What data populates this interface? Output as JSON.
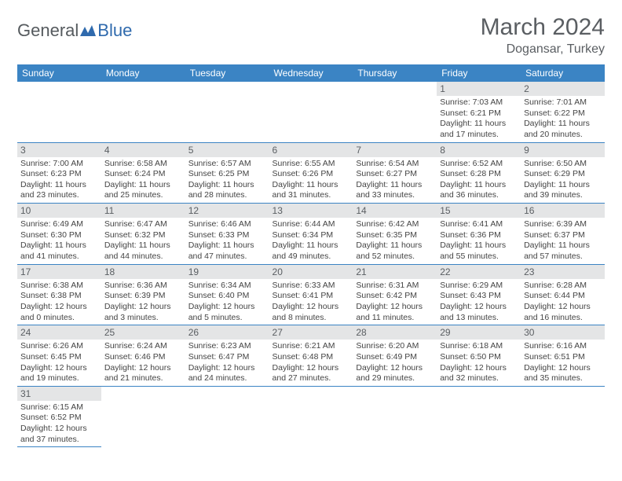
{
  "logo": {
    "part1": "General",
    "part2": "Blue"
  },
  "title": "March 2024",
  "location": "Dogansar, Turkey",
  "colors": {
    "header_bg": "#3b84c4",
    "header_text": "#ffffff",
    "daynum_bg": "#e4e5e6",
    "text": "#5a5e62",
    "accent": "#2f6aad"
  },
  "weekdays": [
    "Sunday",
    "Monday",
    "Tuesday",
    "Wednesday",
    "Thursday",
    "Friday",
    "Saturday"
  ],
  "first_weekday_index": 5,
  "days": [
    {
      "n": 1,
      "sunrise": "7:03 AM",
      "sunset": "6:21 PM",
      "daylight": "11 hours and 17 minutes."
    },
    {
      "n": 2,
      "sunrise": "7:01 AM",
      "sunset": "6:22 PM",
      "daylight": "11 hours and 20 minutes."
    },
    {
      "n": 3,
      "sunrise": "7:00 AM",
      "sunset": "6:23 PM",
      "daylight": "11 hours and 23 minutes."
    },
    {
      "n": 4,
      "sunrise": "6:58 AM",
      "sunset": "6:24 PM",
      "daylight": "11 hours and 25 minutes."
    },
    {
      "n": 5,
      "sunrise": "6:57 AM",
      "sunset": "6:25 PM",
      "daylight": "11 hours and 28 minutes."
    },
    {
      "n": 6,
      "sunrise": "6:55 AM",
      "sunset": "6:26 PM",
      "daylight": "11 hours and 31 minutes."
    },
    {
      "n": 7,
      "sunrise": "6:54 AM",
      "sunset": "6:27 PM",
      "daylight": "11 hours and 33 minutes."
    },
    {
      "n": 8,
      "sunrise": "6:52 AM",
      "sunset": "6:28 PM",
      "daylight": "11 hours and 36 minutes."
    },
    {
      "n": 9,
      "sunrise": "6:50 AM",
      "sunset": "6:29 PM",
      "daylight": "11 hours and 39 minutes."
    },
    {
      "n": 10,
      "sunrise": "6:49 AM",
      "sunset": "6:30 PM",
      "daylight": "11 hours and 41 minutes."
    },
    {
      "n": 11,
      "sunrise": "6:47 AM",
      "sunset": "6:32 PM",
      "daylight": "11 hours and 44 minutes."
    },
    {
      "n": 12,
      "sunrise": "6:46 AM",
      "sunset": "6:33 PM",
      "daylight": "11 hours and 47 minutes."
    },
    {
      "n": 13,
      "sunrise": "6:44 AM",
      "sunset": "6:34 PM",
      "daylight": "11 hours and 49 minutes."
    },
    {
      "n": 14,
      "sunrise": "6:42 AM",
      "sunset": "6:35 PM",
      "daylight": "11 hours and 52 minutes."
    },
    {
      "n": 15,
      "sunrise": "6:41 AM",
      "sunset": "6:36 PM",
      "daylight": "11 hours and 55 minutes."
    },
    {
      "n": 16,
      "sunrise": "6:39 AM",
      "sunset": "6:37 PM",
      "daylight": "11 hours and 57 minutes."
    },
    {
      "n": 17,
      "sunrise": "6:38 AM",
      "sunset": "6:38 PM",
      "daylight": "12 hours and 0 minutes."
    },
    {
      "n": 18,
      "sunrise": "6:36 AM",
      "sunset": "6:39 PM",
      "daylight": "12 hours and 3 minutes."
    },
    {
      "n": 19,
      "sunrise": "6:34 AM",
      "sunset": "6:40 PM",
      "daylight": "12 hours and 5 minutes."
    },
    {
      "n": 20,
      "sunrise": "6:33 AM",
      "sunset": "6:41 PM",
      "daylight": "12 hours and 8 minutes."
    },
    {
      "n": 21,
      "sunrise": "6:31 AM",
      "sunset": "6:42 PM",
      "daylight": "12 hours and 11 minutes."
    },
    {
      "n": 22,
      "sunrise": "6:29 AM",
      "sunset": "6:43 PM",
      "daylight": "12 hours and 13 minutes."
    },
    {
      "n": 23,
      "sunrise": "6:28 AM",
      "sunset": "6:44 PM",
      "daylight": "12 hours and 16 minutes."
    },
    {
      "n": 24,
      "sunrise": "6:26 AM",
      "sunset": "6:45 PM",
      "daylight": "12 hours and 19 minutes."
    },
    {
      "n": 25,
      "sunrise": "6:24 AM",
      "sunset": "6:46 PM",
      "daylight": "12 hours and 21 minutes."
    },
    {
      "n": 26,
      "sunrise": "6:23 AM",
      "sunset": "6:47 PM",
      "daylight": "12 hours and 24 minutes."
    },
    {
      "n": 27,
      "sunrise": "6:21 AM",
      "sunset": "6:48 PM",
      "daylight": "12 hours and 27 minutes."
    },
    {
      "n": 28,
      "sunrise": "6:20 AM",
      "sunset": "6:49 PM",
      "daylight": "12 hours and 29 minutes."
    },
    {
      "n": 29,
      "sunrise": "6:18 AM",
      "sunset": "6:50 PM",
      "daylight": "12 hours and 32 minutes."
    },
    {
      "n": 30,
      "sunrise": "6:16 AM",
      "sunset": "6:51 PM",
      "daylight": "12 hours and 35 minutes."
    },
    {
      "n": 31,
      "sunrise": "6:15 AM",
      "sunset": "6:52 PM",
      "daylight": "12 hours and 37 minutes."
    }
  ],
  "labels": {
    "sunrise": "Sunrise:",
    "sunset": "Sunset:",
    "daylight": "Daylight:"
  }
}
